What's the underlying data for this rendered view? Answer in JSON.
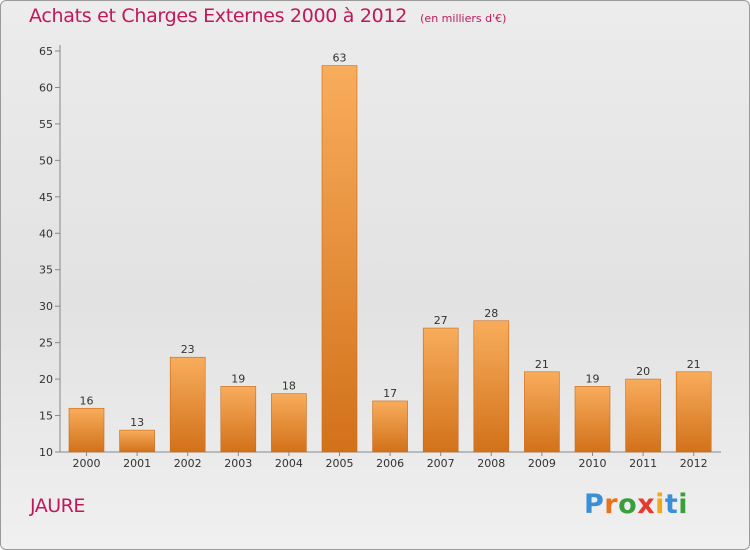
{
  "title": "Achats et Charges Externes 2000 à 2012",
  "subtitle": "(en milliers d'€)",
  "place": "JAURE",
  "logo": {
    "letters": [
      "P",
      "r",
      "o",
      "x",
      "i",
      "t",
      "i"
    ],
    "colors": [
      "#3b8fd6",
      "#e8731c",
      "#3a9e3a",
      "#e63a2e",
      "#f2a81d",
      "#3b8fd6",
      "#3a9e3a"
    ]
  },
  "colors": {
    "bar": "#e98a2e",
    "bar_light": "#f8ad5c",
    "bar_dark": "#d2711a",
    "text": "#333333",
    "title": "#c2185b"
  },
  "chart_data": {
    "type": "bar",
    "categories": [
      "2000",
      "2001",
      "2002",
      "2003",
      "2004",
      "2005",
      "2006",
      "2007",
      "2008",
      "2009",
      "2010",
      "2011",
      "2012"
    ],
    "values": [
      16,
      13,
      23,
      19,
      18,
      63,
      17,
      27,
      28,
      21,
      19,
      20,
      21
    ],
    "ylim": [
      10,
      65
    ],
    "yticks": [
      10,
      15,
      20,
      25,
      30,
      35,
      40,
      45,
      50,
      55,
      60,
      65
    ],
    "grid": false,
    "legend": "none"
  }
}
